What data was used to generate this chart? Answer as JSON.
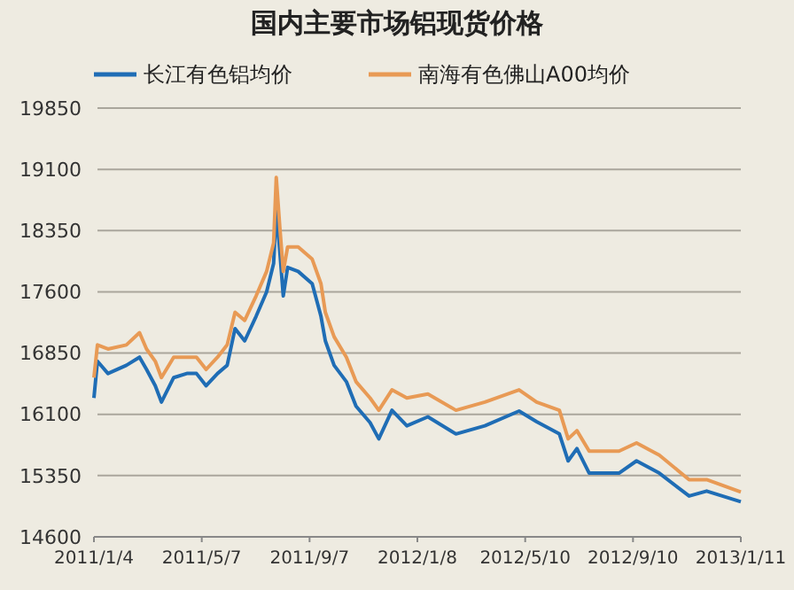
{
  "chart_data": {
    "type": "line",
    "title": "国内主要市场铝现货价格",
    "x": [
      "2011-01-04",
      "2011-01-08",
      "2011-01-20",
      "2011-02-10",
      "2011-02-25",
      "2011-03-05",
      "2011-03-15",
      "2011-03-22",
      "2011-04-05",
      "2011-04-20",
      "2011-05-01",
      "2011-05-12",
      "2011-05-25",
      "2011-06-05",
      "2011-06-14",
      "2011-06-25",
      "2011-07-08",
      "2011-07-20",
      "2011-07-28",
      "2011-07-31",
      "2011-08-04",
      "2011-08-08",
      "2011-08-13",
      "2011-08-25",
      "2011-09-10",
      "2011-09-20",
      "2011-09-25",
      "2011-10-05",
      "2011-10-19",
      "2011-10-30",
      "2011-11-15",
      "2011-11-25",
      "2011-12-10",
      "2011-12-27",
      "2012-01-20",
      "2012-02-21",
      "2012-03-25",
      "2012-05-03",
      "2012-05-23",
      "2012-06-18",
      "2012-06-28",
      "2012-07-08",
      "2012-07-22",
      "2012-08-25",
      "2012-09-14",
      "2012-10-10",
      "2012-11-13",
      "2012-12-03",
      "2013-01-11"
    ],
    "series": [
      {
        "name": "长江有色铝均价",
        "color": "#1f6db5",
        "values": [
          16300,
          16750,
          16600,
          16700,
          16800,
          16650,
          16450,
          16250,
          16550,
          16600,
          16600,
          16450,
          16600,
          16700,
          17150,
          17000,
          17300,
          17600,
          17950,
          18600,
          18100,
          17550,
          17900,
          17850,
          17700,
          17300,
          17000,
          16700,
          16500,
          16200,
          16000,
          15800,
          16150,
          15960,
          16070,
          15860,
          15960,
          16140,
          16010,
          15860,
          15530,
          15680,
          15380,
          15380,
          15530,
          15380,
          15100,
          15160,
          15030
        ]
      },
      {
        "name": "南海有色佛山A00均价",
        "color": "#e89a55",
        "values": [
          16550,
          16950,
          16900,
          16950,
          17100,
          16900,
          16750,
          16550,
          16800,
          16800,
          16800,
          16650,
          16800,
          16950,
          17350,
          17250,
          17550,
          17850,
          18200,
          19000,
          18400,
          17850,
          18150,
          18150,
          18000,
          17700,
          17350,
          17050,
          16800,
          16500,
          16300,
          16150,
          16400,
          16300,
          16350,
          16150,
          16250,
          16400,
          16250,
          16150,
          15800,
          15900,
          15650,
          15650,
          15750,
          15600,
          15300,
          15300,
          15150
        ]
      }
    ],
    "xlim": [
      "2011-01-04",
      "2013-01-11"
    ],
    "xticks": [
      {
        "value": "2011-01-04",
        "label": "2011/1/4"
      },
      {
        "value": "2011-05-07",
        "label": "2011/5/7"
      },
      {
        "value": "2011-09-07",
        "label": "2011/9/7"
      },
      {
        "value": "2012-01-08",
        "label": "2012/1/8"
      },
      {
        "value": "2012-05-10",
        "label": "2012/5/10"
      },
      {
        "value": "2012-09-10",
        "label": "2012/9/10"
      },
      {
        "value": "2013-01-11",
        "label": "2013/1/11"
      }
    ],
    "ylim": [
      14600,
      19850
    ],
    "yticks": [
      14600,
      15350,
      16100,
      16850,
      17600,
      18350,
      19100,
      19850
    ],
    "grid": "y",
    "legend": "top left",
    "line_style": "solid",
    "marker": "none"
  }
}
